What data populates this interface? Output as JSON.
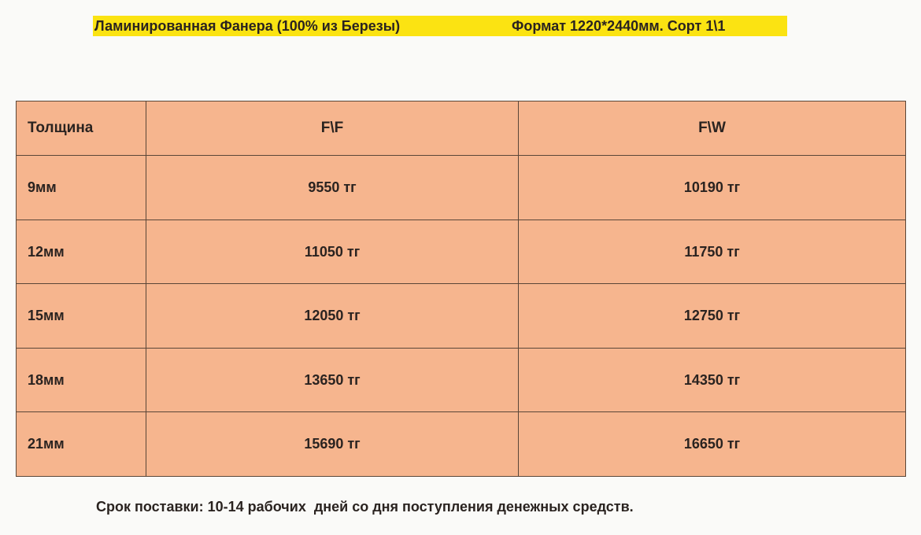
{
  "title": {
    "left": "Ламинированная Фанера (100% из Березы)",
    "right": "Формат 1220*2440мм. Сорт 1\\1"
  },
  "highlight_color": "#fbe312",
  "table_color": "#f6b58e",
  "table": {
    "headers": [
      "Толщина",
      "F\\F",
      "F\\W"
    ],
    "rows": [
      [
        "9мм",
        "9550 тг",
        "10190 тг"
      ],
      [
        "12мм",
        "11050 тг",
        "11750 тг"
      ],
      [
        "15мм",
        "12050 тг",
        "12750 тг"
      ],
      [
        "18мм",
        "13650 тг",
        "14350 тг"
      ],
      [
        "21мм",
        "15690 тг",
        "16650 тг"
      ]
    ]
  },
  "footer": "Срок поставки: 10-14 рабочих  дней со дня поступления денежных средств."
}
